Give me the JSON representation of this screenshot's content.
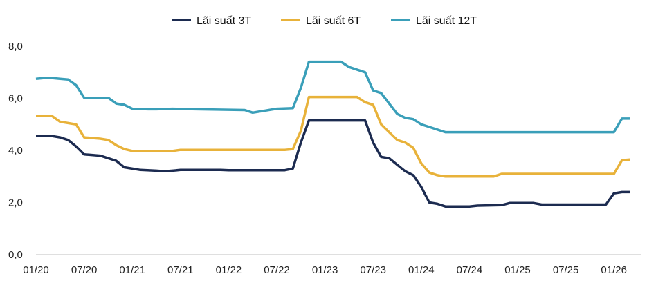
{
  "chart_data": {
    "type": "line",
    "title": "",
    "xlabel": "",
    "ylabel": "",
    "ylim": [
      0,
      8
    ],
    "yticks": [
      "0,0",
      "2,0",
      "4,0",
      "6,0",
      "8,0"
    ],
    "xticks": [
      "01/20",
      "07/20",
      "01/21",
      "07/21",
      "01/22",
      "07/22",
      "01/23",
      "07/23",
      "01/24",
      "07/24",
      "01/25",
      "07/25",
      "01/26"
    ],
    "grid": false,
    "legend_position": "top-center",
    "series": [
      {
        "name": "Lãi suất 3T",
        "color": "#1c2b50",
        "points": [
          [
            "01/20",
            4.55
          ],
          [
            "03/20",
            4.55
          ],
          [
            "04/20",
            4.5
          ],
          [
            "05/20",
            4.4
          ],
          [
            "06/20",
            4.15
          ],
          [
            "07/20",
            3.85
          ],
          [
            "09/20",
            3.8
          ],
          [
            "10/20",
            3.7
          ],
          [
            "11/20",
            3.6
          ],
          [
            "12/20",
            3.35
          ],
          [
            "01/21",
            3.3
          ],
          [
            "02/21",
            3.25
          ],
          [
            "04/21",
            3.22
          ],
          [
            "05/21",
            3.2
          ],
          [
            "06/21",
            3.22
          ],
          [
            "07/21",
            3.25
          ],
          [
            "12/21",
            3.25
          ],
          [
            "01/22",
            3.24
          ],
          [
            "08/22",
            3.24
          ],
          [
            "09/22",
            3.3
          ],
          [
            "10/22",
            4.3
          ],
          [
            "11/22",
            5.15
          ],
          [
            "06/23",
            5.15
          ],
          [
            "07/23",
            4.3
          ],
          [
            "08/23",
            3.75
          ],
          [
            "09/23",
            3.7
          ],
          [
            "10/23",
            3.45
          ],
          [
            "11/23",
            3.2
          ],
          [
            "12/23",
            3.05
          ],
          [
            "01/24",
            2.6
          ],
          [
            "02/24",
            2.0
          ],
          [
            "03/24",
            1.95
          ],
          [
            "04/24",
            1.85
          ],
          [
            "07/24",
            1.85
          ],
          [
            "08/24",
            1.88
          ],
          [
            "11/24",
            1.9
          ],
          [
            "12/24",
            1.98
          ],
          [
            "03/25",
            1.98
          ],
          [
            "04/25",
            1.92
          ],
          [
            "12/25",
            1.92
          ],
          [
            "01/26",
            2.35
          ],
          [
            "02/26",
            2.4
          ],
          [
            "03/26",
            2.4
          ]
        ]
      },
      {
        "name": "Lãi suất 6T",
        "color": "#e8b23a",
        "points": [
          [
            "01/20",
            5.32
          ],
          [
            "03/20",
            5.32
          ],
          [
            "04/20",
            5.1
          ],
          [
            "05/20",
            5.05
          ],
          [
            "06/20",
            5.0
          ],
          [
            "07/20",
            4.5
          ],
          [
            "09/20",
            4.45
          ],
          [
            "10/20",
            4.4
          ],
          [
            "11/20",
            4.2
          ],
          [
            "12/20",
            4.05
          ],
          [
            "01/21",
            3.98
          ],
          [
            "06/21",
            3.98
          ],
          [
            "07/21",
            4.02
          ],
          [
            "08/22",
            4.02
          ],
          [
            "09/22",
            4.05
          ],
          [
            "10/22",
            4.75
          ],
          [
            "11/22",
            6.05
          ],
          [
            "05/23",
            6.05
          ],
          [
            "06/23",
            5.85
          ],
          [
            "07/23",
            5.75
          ],
          [
            "08/23",
            5.0
          ],
          [
            "09/23",
            4.7
          ],
          [
            "10/23",
            4.4
          ],
          [
            "11/23",
            4.3
          ],
          [
            "12/23",
            4.1
          ],
          [
            "01/24",
            3.5
          ],
          [
            "02/24",
            3.15
          ],
          [
            "03/24",
            3.05
          ],
          [
            "04/24",
            3.0
          ],
          [
            "10/24",
            3.0
          ],
          [
            "11/24",
            3.1
          ],
          [
            "01/26",
            3.1
          ],
          [
            "02/26",
            3.62
          ],
          [
            "03/26",
            3.65
          ]
        ]
      },
      {
        "name": "Lãi suất 12T",
        "color": "#3a9fb9",
        "points": [
          [
            "01/20",
            6.75
          ],
          [
            "02/20",
            6.78
          ],
          [
            "03/20",
            6.78
          ],
          [
            "04/20",
            6.75
          ],
          [
            "05/20",
            6.72
          ],
          [
            "06/20",
            6.5
          ],
          [
            "07/20",
            6.02
          ],
          [
            "10/20",
            6.02
          ],
          [
            "11/20",
            5.8
          ],
          [
            "12/20",
            5.75
          ],
          [
            "01/21",
            5.6
          ],
          [
            "03/21",
            5.58
          ],
          [
            "04/21",
            5.58
          ],
          [
            "06/21",
            5.6
          ],
          [
            "09/21",
            5.58
          ],
          [
            "01/22",
            5.56
          ],
          [
            "03/22",
            5.55
          ],
          [
            "04/22",
            5.45
          ],
          [
            "05/22",
            5.5
          ],
          [
            "06/22",
            5.55
          ],
          [
            "07/22",
            5.6
          ],
          [
            "09/22",
            5.62
          ],
          [
            "10/22",
            6.4
          ],
          [
            "11/22",
            7.4
          ],
          [
            "03/23",
            7.4
          ],
          [
            "04/23",
            7.2
          ],
          [
            "06/23",
            7.0
          ],
          [
            "07/23",
            6.3
          ],
          [
            "08/23",
            6.2
          ],
          [
            "09/23",
            5.8
          ],
          [
            "10/23",
            5.4
          ],
          [
            "11/23",
            5.25
          ],
          [
            "12/23",
            5.2
          ],
          [
            "01/24",
            5.0
          ],
          [
            "02/24",
            4.9
          ],
          [
            "03/24",
            4.8
          ],
          [
            "04/24",
            4.7
          ],
          [
            "01/26",
            4.7
          ],
          [
            "02/26",
            5.22
          ],
          [
            "03/26",
            5.22
          ]
        ]
      }
    ]
  }
}
